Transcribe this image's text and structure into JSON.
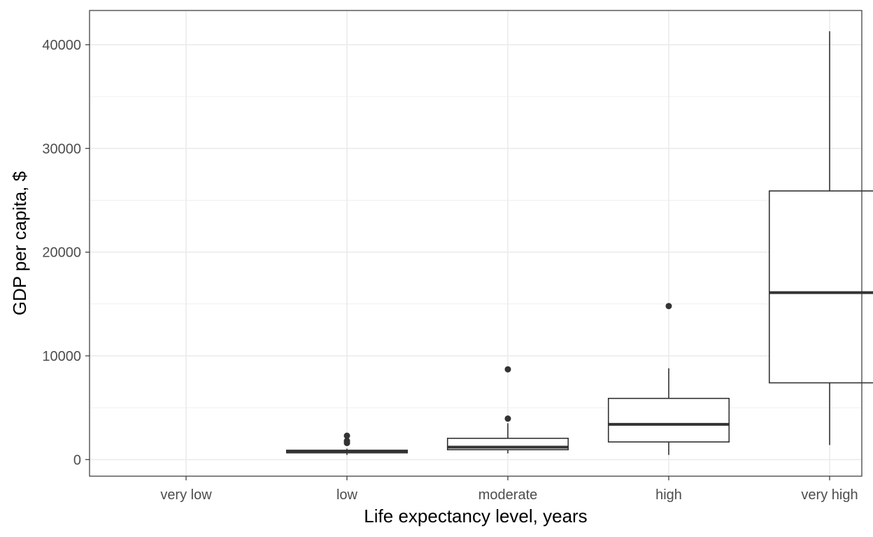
{
  "chart_data": {
    "type": "box",
    "title": "",
    "xlabel": "Life expectancy level, years",
    "ylabel": "GDP per capita, $",
    "ylim": [
      -1600,
      43300
    ],
    "yticks": [
      0,
      10000,
      20000,
      30000,
      40000
    ],
    "ytick_labels": [
      "0",
      "10000",
      "20000",
      "30000",
      "40000"
    ],
    "grid": true,
    "categories": [
      "very low",
      "low",
      "moderate",
      "high",
      "very high"
    ],
    "boxes": [
      {
        "category": "very low",
        "whisker_low": null,
        "q1": null,
        "median": null,
        "q3": null,
        "whisker_high": null,
        "outliers": []
      },
      {
        "category": "low",
        "whisker_low": 450,
        "q1": 650,
        "median": 750,
        "q3": 900,
        "whisker_high": 1050,
        "outliers": [
          1600,
          1800,
          2300
        ]
      },
      {
        "category": "moderate",
        "whisker_low": 600,
        "q1": 950,
        "median": 1200,
        "q3": 2050,
        "whisker_high": 3500,
        "outliers": [
          3950,
          8700
        ]
      },
      {
        "category": "high",
        "whisker_low": 450,
        "q1": 1700,
        "median": 3400,
        "q3": 5900,
        "whisker_high": 8800,
        "outliers": [
          14800
        ]
      },
      {
        "category": "very high",
        "whisker_low": 1400,
        "q1": 7400,
        "median": 16100,
        "q3": 25900,
        "whisker_high": 41300,
        "outliers": []
      }
    ],
    "colors": {
      "box_stroke": "#333333",
      "grid": "#ebebeb",
      "panel_border": "#333333",
      "tick_text": "#4d4d4d"
    }
  }
}
